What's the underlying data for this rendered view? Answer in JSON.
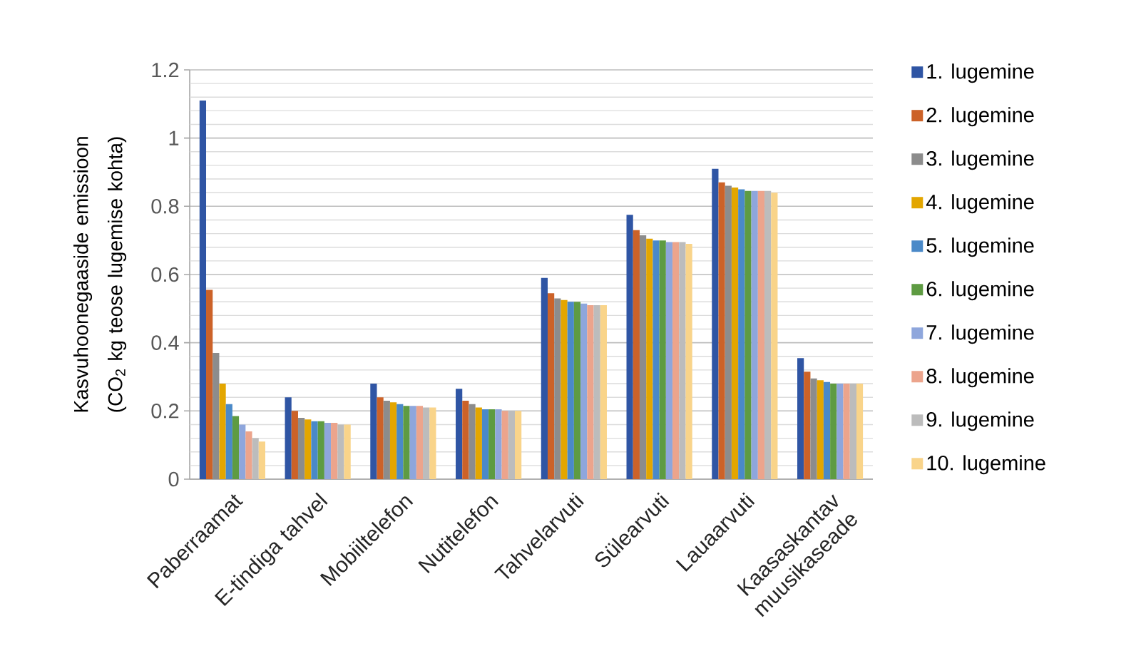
{
  "chart_data": {
    "type": "bar",
    "ylabel": "Kasvuhoonegaaside emissioon (CO$_{2}$ kg teose lugemise kohta)",
    "categories": [
      "Paberraamat",
      "E-tindiga tahvel",
      "Mobiiltelefon",
      "Nutitelefon",
      "Tahvelarvuti",
      "Sülearvuti",
      "Lauaarvuti",
      "Kaasaskantav muusikaseade"
    ],
    "series": [
      {
        "name": "1. lugemine",
        "color": "#2f55a4",
        "values": [
          1.11,
          0.24,
          0.28,
          0.265,
          0.59,
          0.775,
          0.91,
          0.355
        ]
      },
      {
        "name": "2. lugemine",
        "color": "#cc6228",
        "values": [
          0.555,
          0.2,
          0.24,
          0.23,
          0.545,
          0.73,
          0.87,
          0.315
        ]
      },
      {
        "name": "3. lugemine",
        "color": "#8c8c8c",
        "values": [
          0.37,
          0.18,
          0.23,
          0.22,
          0.53,
          0.715,
          0.86,
          0.295
        ]
      },
      {
        "name": "4. lugemine",
        "color": "#e3a600",
        "values": [
          0.28,
          0.175,
          0.225,
          0.21,
          0.525,
          0.705,
          0.855,
          0.29
        ]
      },
      {
        "name": "5. lugemine",
        "color": "#4a89c8",
        "values": [
          0.22,
          0.17,
          0.22,
          0.205,
          0.52,
          0.7,
          0.85,
          0.285
        ]
      },
      {
        "name": "6. lugemine",
        "color": "#5e9b42",
        "values": [
          0.185,
          0.17,
          0.215,
          0.205,
          0.52,
          0.7,
          0.845,
          0.28
        ]
      },
      {
        "name": "7. lugemine",
        "color": "#8ea6dc",
        "values": [
          0.16,
          0.165,
          0.215,
          0.205,
          0.515,
          0.695,
          0.845,
          0.28
        ]
      },
      {
        "name": "8. lugemine",
        "color": "#eca48c",
        "values": [
          0.14,
          0.165,
          0.215,
          0.2,
          0.51,
          0.695,
          0.845,
          0.28
        ]
      },
      {
        "name": "9. lugemine",
        "color": "#bcbcbc",
        "values": [
          0.12,
          0.16,
          0.21,
          0.2,
          0.51,
          0.695,
          0.845,
          0.28
        ]
      },
      {
        "name": "10. lugemine",
        "color": "#f9d48a",
        "values": [
          0.11,
          0.16,
          0.21,
          0.2,
          0.51,
          0.69,
          0.84,
          0.28
        ]
      }
    ],
    "ylim": [
      0,
      1.2
    ],
    "yticks": [
      0,
      {
        "value": 0.04,
        "label": null
      },
      {
        "value": 0.08,
        "label": null
      },
      {
        "value": 0.12,
        "label": null
      },
      {
        "value": 0.16,
        "label": null
      },
      0.2,
      {
        "value": 0.24,
        "label": null
      },
      {
        "value": 0.28,
        "label": null
      },
      {
        "value": 0.32,
        "label": null
      },
      {
        "value": 0.36,
        "label": null
      },
      0.4,
      {
        "value": 0.44,
        "label": null
      },
      {
        "value": 0.48,
        "label": null
      },
      {
        "value": 0.52,
        "label": null
      },
      {
        "value": 0.56,
        "label": null
      },
      0.6,
      {
        "value": 0.64,
        "label": null
      },
      {
        "value": 0.68,
        "label": null
      },
      {
        "value": 0.72,
        "label": null
      },
      {
        "value": 0.76,
        "label": null
      },
      0.8,
      {
        "value": 0.84,
        "label": null
      },
      {
        "value": 0.88,
        "label": null
      },
      {
        "value": 0.92,
        "label": null
      },
      {
        "value": 0.96,
        "label": null
      },
      1,
      {
        "value": 1.04,
        "label": null
      },
      {
        "value": 1.08,
        "label": null
      },
      {
        "value": 1.12,
        "label": null
      },
      {
        "value": 1.16,
        "label": null
      },
      1.2
    ],
    "grid": "y",
    "legend": "right"
  }
}
